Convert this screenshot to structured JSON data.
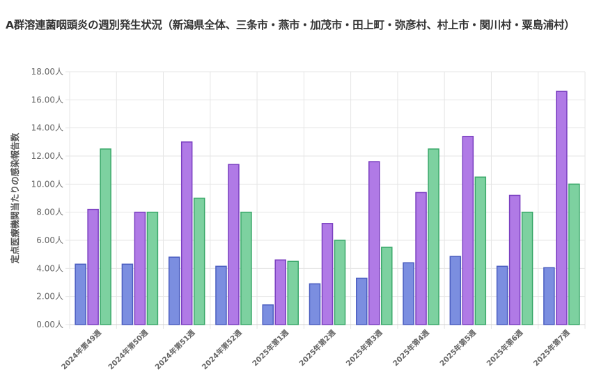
{
  "page": {
    "title": "A群溶連菌咽頭炎の週別発生状況（新潟県全体、三条市・燕市・加茂市・田上町・弥彦村、村上市・関川村・粟島浦村）"
  },
  "chart_data": {
    "type": "bar",
    "title": "A群溶連菌咽頭炎の週別発生状況（新潟県全体、三条市・燕市・加茂市・田上町・弥彦村、村上市・関川村・粟島浦村）",
    "xlabel": "",
    "ylabel": "定点医療機関当たりの感染報告数",
    "ylim": [
      0,
      18
    ],
    "ytick_step": 2,
    "ytick_suffix": "人",
    "grid": true,
    "legend": "none",
    "categories": [
      "2024年第49週",
      "2024年第50週",
      "2024年第51週",
      "2024年第52週",
      "2025年第1週",
      "2025年第2週",
      "2025年第3週",
      "2025年第4週",
      "2025年第5週",
      "2025年第6週",
      "2025年第7週"
    ],
    "series": [
      {
        "values": [
          4.3,
          4.3,
          4.8,
          4.15,
          1.4,
          2.9,
          3.3,
          4.4,
          4.85,
          4.15,
          4.05
        ],
        "color": "#7b8ee0",
        "border": "#4a5dc0"
      },
      {
        "values": [
          8.2,
          8.0,
          13.0,
          11.4,
          4.6,
          7.2,
          11.6,
          9.4,
          13.4,
          9.2,
          16.6
        ],
        "color": "#b07ae6",
        "border": "#7a3fc0"
      },
      {
        "values": [
          12.5,
          8.0,
          9.0,
          8.0,
          4.5,
          6.0,
          5.5,
          12.5,
          10.5,
          8.0,
          10.0
        ],
        "color": "#7dd1a0",
        "border": "#3aa86a"
      }
    ]
  }
}
